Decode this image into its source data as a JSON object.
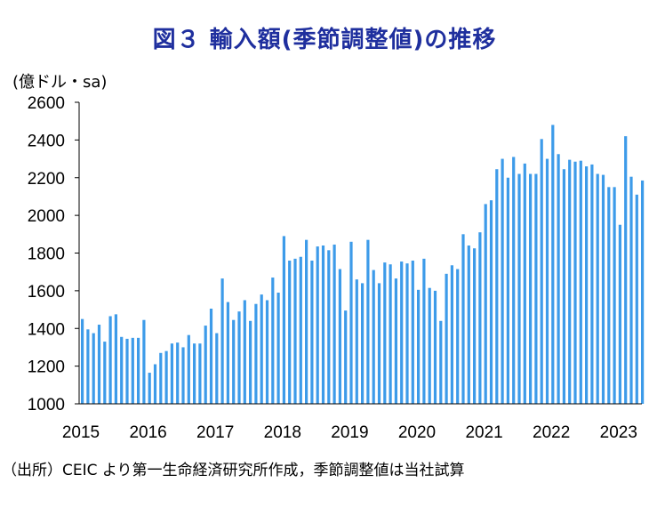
{
  "title": "図３ 輸入額(季節調整値)の推移",
  "unit_label": "(億ドル・sa)",
  "source_note": "（出所）CEIC より第一生命経済研究所作成，季節調整値は当社試算",
  "colors": {
    "bar": "#3d9be9",
    "title": "#1f2f9e",
    "axis": "#000000"
  },
  "chart_data": {
    "type": "bar",
    "title": "図３ 輸入額(季節調整値)の推移",
    "ylabel": "(億ドル・sa)",
    "xlabel": "",
    "ylim": [
      1000,
      2600
    ],
    "yticks": [
      "1000",
      "1200",
      "1400",
      "1600",
      "1800",
      "2000",
      "2200",
      "2400",
      "2600"
    ],
    "xticks": [
      "2015",
      "2016",
      "2017",
      "2018",
      "2019",
      "2020",
      "2021",
      "2022",
      "2023"
    ],
    "start": "2015-01",
    "frequency": "monthly",
    "values": [
      1450,
      1395,
      1375,
      1420,
      1330,
      1465,
      1475,
      1355,
      1345,
      1350,
      1350,
      1445,
      1165,
      1210,
      1270,
      1280,
      1320,
      1325,
      1300,
      1365,
      1320,
      1320,
      1415,
      1505,
      1375,
      1665,
      1540,
      1445,
      1490,
      1550,
      1440,
      1530,
      1580,
      1550,
      1670,
      1590,
      1890,
      1760,
      1770,
      1780,
      1870,
      1760,
      1835,
      1840,
      1815,
      1845,
      1715,
      1495,
      1860,
      1660,
      1640,
      1870,
      1710,
      1640,
      1750,
      1740,
      1665,
      1755,
      1745,
      1760,
      1605,
      1770,
      1615,
      1600,
      1440,
      1690,
      1735,
      1715,
      1900,
      1840,
      1825,
      1910,
      2060,
      2080,
      2245,
      2300,
      2200,
      2310,
      2220,
      2275,
      2220,
      2220,
      2405,
      2300,
      2480,
      2325,
      2245,
      2295,
      2285,
      2290,
      2260,
      2270,
      2220,
      2215,
      2150,
      2150,
      1950,
      2420,
      2205,
      2110,
      2185
    ]
  }
}
